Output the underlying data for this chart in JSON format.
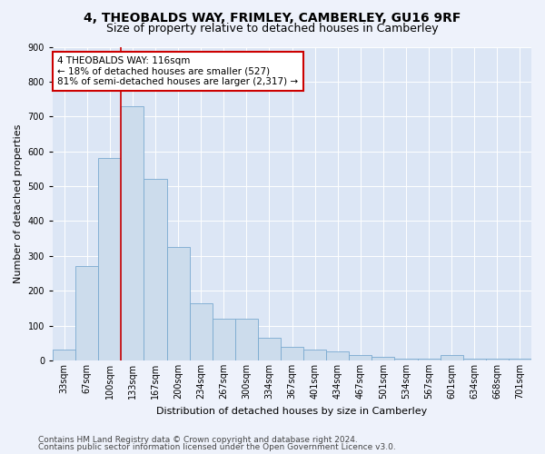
{
  "title1": "4, THEOBALDS WAY, FRIMLEY, CAMBERLEY, GU16 9RF",
  "title2": "Size of property relative to detached houses in Camberley",
  "xlabel": "Distribution of detached houses by size in Camberley",
  "ylabel": "Number of detached properties",
  "footer1": "Contains HM Land Registry data © Crown copyright and database right 2024.",
  "footer2": "Contains public sector information licensed under the Open Government Licence v3.0.",
  "bar_labels": [
    "33sqm",
    "67sqm",
    "100sqm",
    "133sqm",
    "167sqm",
    "200sqm",
    "234sqm",
    "267sqm",
    "300sqm",
    "334sqm",
    "367sqm",
    "401sqm",
    "434sqm",
    "467sqm",
    "501sqm",
    "534sqm",
    "567sqm",
    "601sqm",
    "634sqm",
    "668sqm",
    "701sqm"
  ],
  "bar_values": [
    30,
    270,
    580,
    730,
    520,
    325,
    165,
    120,
    120,
    65,
    40,
    30,
    25,
    15,
    10,
    5,
    5,
    15,
    5,
    5,
    5
  ],
  "bar_color": "#ccdcec",
  "bar_edge_color": "#7aaad0",
  "vline_color": "#cc0000",
  "annotation_text": "4 THEOBALDS WAY: 116sqm\n← 18% of detached houses are smaller (527)\n81% of semi-detached houses are larger (2,317) →",
  "annotation_box_color": "#ffffff",
  "annotation_box_edge": "#cc0000",
  "ylim": [
    0,
    900
  ],
  "yticks": [
    0,
    100,
    200,
    300,
    400,
    500,
    600,
    700,
    800,
    900
  ],
  "background_color": "#eef2fb",
  "plot_bg_color": "#dce6f5",
  "grid_color": "#ffffff",
  "title1_fontsize": 10,
  "title2_fontsize": 9,
  "axis_label_fontsize": 8,
  "tick_fontsize": 7,
  "footer_fontsize": 6.5,
  "annot_fontsize": 7.5
}
